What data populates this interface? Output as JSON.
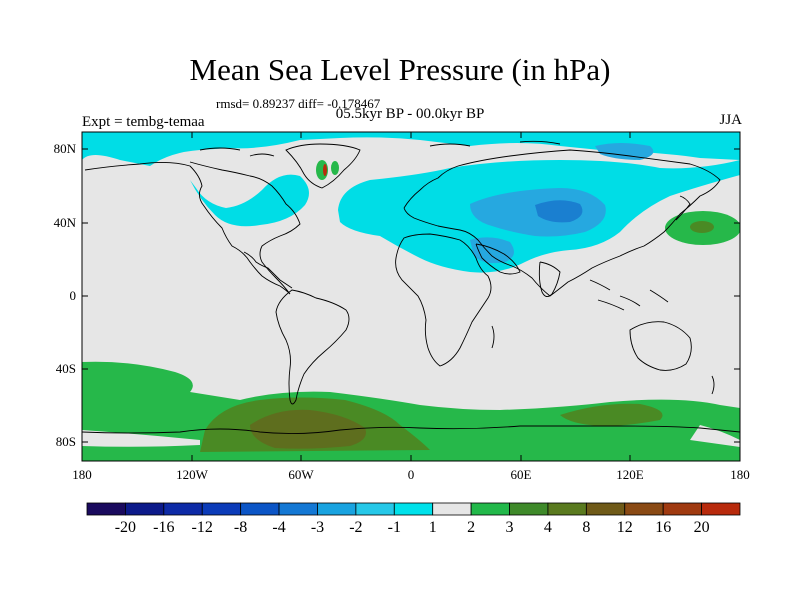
{
  "header": {
    "title": "Mean Sea Level Pressure (in hPa)",
    "stats": "rmsd= 0.89237 diff= -0.178467",
    "period": "05.5kyr BP - 00.0kyr BP",
    "experiment": "Expt = tembg-temaa",
    "season": "JJA"
  },
  "map": {
    "lat_range": [
      -90,
      90
    ],
    "lon_range": [
      -180,
      180
    ],
    "y_ticks": [
      "80N",
      "40N",
      "0",
      "40S",
      "80S"
    ],
    "y_tick_values": [
      80,
      40,
      0,
      -40,
      -80
    ],
    "x_ticks": [
      "180",
      "120W",
      "60W",
      "0",
      "60E",
      "120E",
      "180"
    ],
    "x_tick_values": [
      -180,
      -120,
      -60,
      0,
      60,
      120,
      180
    ]
  },
  "colorbar": {
    "labels": [
      "-20",
      "-16",
      "-12",
      "-8",
      "-4",
      "-3",
      "-2",
      "-1",
      "1",
      "2",
      "3",
      "4",
      "8",
      "12",
      "16",
      "20"
    ],
    "colors": [
      "#1a0a5e",
      "#0c1a8a",
      "#0d2aa6",
      "#0b3bb8",
      "#0b55c6",
      "#1478d4",
      "#19a3e0",
      "#26c8e8",
      "#00e1ea",
      "#e6e6e6",
      "#22b84a",
      "#3f8a2a",
      "#5a7a1f",
      "#6f5a18",
      "#8a4a14",
      "#a03a10",
      "#b82a0c"
    ],
    "colors_note": "17 swatches from dark blue to red"
  },
  "colors": {
    "background": "#e6e6e6",
    "cyan": "#00dde6",
    "blue_mid": "#26a8e0",
    "blue_deep": "#1a7fd0",
    "green": "#26b84a",
    "green_dark": "#4a8a24",
    "olive": "#5e6e1e"
  }
}
